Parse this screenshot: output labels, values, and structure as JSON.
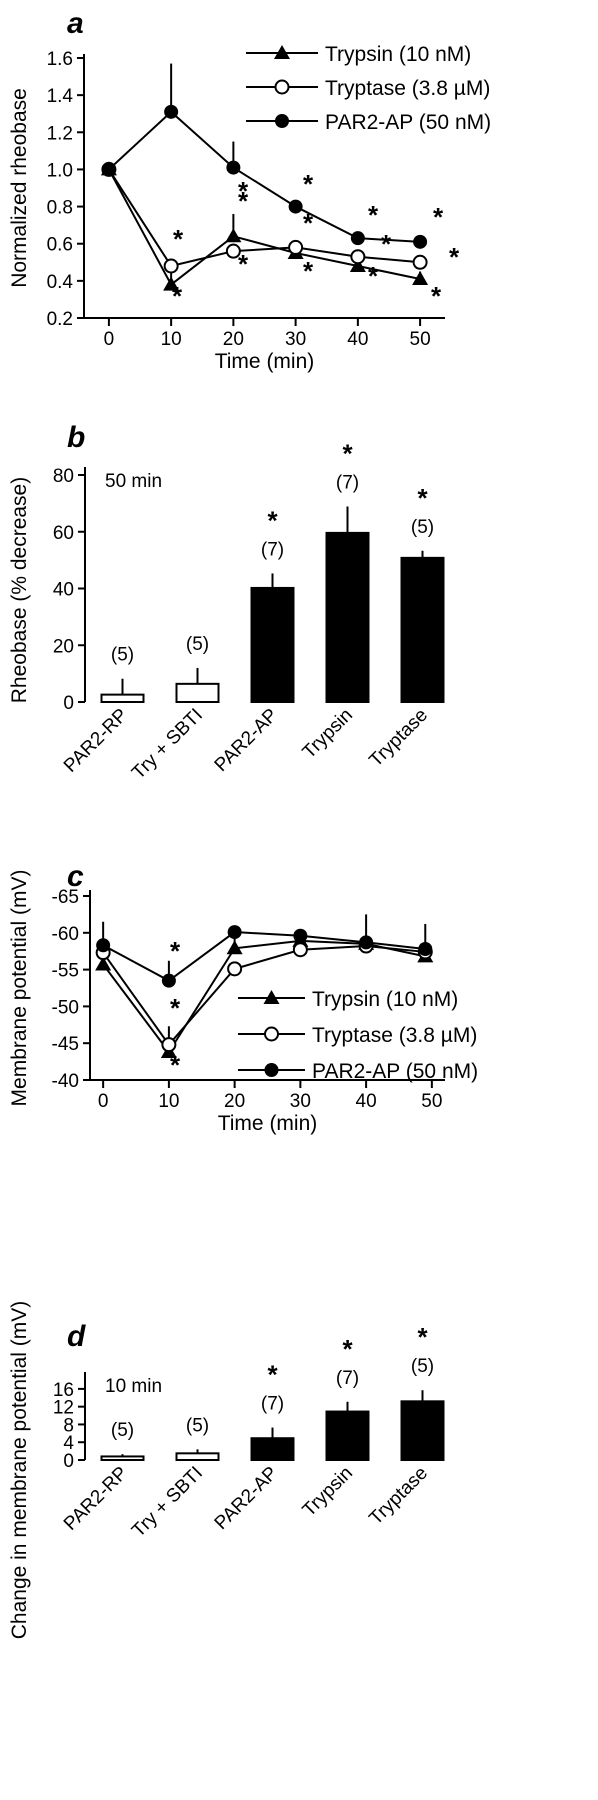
{
  "chart_data": [
    {
      "panel": "a",
      "type": "line",
      "xlabel": "Time (min)",
      "ylabel": "Normalized rheobase",
      "x": [
        0,
        10,
        20,
        30,
        40,
        50
      ],
      "xticks": [
        "0",
        "10",
        "20",
        "30",
        "40",
        "50"
      ],
      "yticks": [
        "0.2",
        "0.4",
        "0.6",
        "0.8",
        "1.0",
        "1.2",
        "1.4",
        "1.6"
      ],
      "ylim": [
        0.2,
        1.6
      ],
      "xlim": [
        -4,
        54
      ],
      "legend_position": "top-right",
      "series": [
        {
          "name": "Trypsin (10 nM)",
          "marker": "triangle",
          "values": [
            1.0,
            0.38,
            0.64,
            0.55,
            0.48,
            0.41
          ],
          "err_up": [
            0,
            0.12,
            0.12,
            0.05,
            0.04,
            0.04
          ]
        },
        {
          "name": "Tryptase (3.8 µM)",
          "marker": "open-circle",
          "values": [
            1.0,
            0.48,
            0.56,
            0.58,
            0.53,
            0.5
          ],
          "err_up": [
            0,
            0.04,
            0.04,
            0.04,
            0.03,
            0.03
          ]
        },
        {
          "name": "PAR2-AP (50 nM)",
          "marker": "filled-circle",
          "values": [
            1.0,
            1.31,
            1.01,
            0.8,
            0.63,
            0.61
          ],
          "err_up": [
            0,
            0.26,
            0.14,
            0.02,
            0.02,
            0.02
          ]
        }
      ],
      "significance": [
        "*",
        "*",
        "*",
        "*",
        "*",
        "*",
        "*",
        "*",
        "*",
        "*",
        "*",
        "*",
        "*",
        "*"
      ]
    },
    {
      "panel": "b",
      "type": "bar",
      "note": "50 min",
      "xlabel": "",
      "ylabel": "Rheobase (% decrease)",
      "categories": [
        "PAR2-RP",
        "Try + SBTI",
        "PAR2-AP",
        "Trypsin",
        "Tryptase"
      ],
      "values": [
        2.6,
        6.4,
        40.2,
        59.6,
        50.8
      ],
      "err_up": [
        5.6,
        5.6,
        5.1,
        9.3,
        2.5
      ],
      "n_labels": [
        "(5)",
        "(5)",
        "(7)",
        "(7)",
        "(5)"
      ],
      "significant": [
        false,
        false,
        true,
        true,
        true
      ],
      "bar_fill": [
        "open",
        "open",
        "filled",
        "filled",
        "filled"
      ],
      "yticks": [
        "0",
        "20",
        "40",
        "60",
        "80"
      ],
      "ylim": [
        0,
        80
      ]
    },
    {
      "panel": "c",
      "type": "line",
      "xlabel": "Time (min)",
      "ylabel": "Membrane potential (mV)",
      "x": [
        0,
        10,
        20,
        30,
        40,
        50
      ],
      "xticks": [
        "0",
        "10",
        "20",
        "30",
        "40",
        "50"
      ],
      "yticks": [
        "-65",
        "-60",
        "-55",
        "-50",
        "-45",
        "-40"
      ],
      "ylim": [
        -65,
        -40
      ],
      "xlim": [
        -2,
        52
      ],
      "y_inverted": true,
      "legend_position": "lower-right",
      "series": [
        {
          "name": "Trypsin (10 nM)",
          "marker": "triangle",
          "x": [
            0,
            10,
            20,
            30,
            40,
            49
          ],
          "values": [
            -55.7,
            -43.8,
            -57.9,
            -58.9,
            -58.5,
            -56.8
          ],
          "err_up": [
            0,
            3.5,
            2.6,
            0,
            0,
            0
          ]
        },
        {
          "name": "Tryptase (3.8 µM)",
          "marker": "open-circle",
          "x": [
            0,
            10,
            20,
            30,
            40,
            49
          ],
          "values": [
            -57.3,
            -44.8,
            -55.1,
            -57.7,
            -58.2,
            -57.4
          ],
          "err_up": [
            0,
            0,
            0,
            0,
            0,
            0
          ]
        },
        {
          "name": "PAR2-AP (50 nM)",
          "marker": "filled-circle",
          "x": [
            0,
            10,
            20,
            30,
            40,
            49
          ],
          "values": [
            -58.3,
            -53.5,
            -60.1,
            -59.6,
            -58.7,
            -57.8
          ],
          "err_up": [
            3.2,
            2.7,
            0.8,
            0.8,
            3.8,
            3.4
          ]
        }
      ],
      "significance": [
        "*",
        "*",
        "*"
      ]
    },
    {
      "panel": "d",
      "type": "bar",
      "note": "10 min",
      "xlabel": "",
      "ylabel": "Change in membrane potential (mV)",
      "categories": [
        "PAR2-RP",
        "Try + SBTI",
        "PAR2-AP",
        "Trypsin",
        "Tryptase"
      ],
      "values": [
        0.8,
        1.5,
        4.9,
        10.9,
        13.2
      ],
      "err_up": [
        0.5,
        0.9,
        2.4,
        2.2,
        2.5
      ],
      "n_labels": [
        "(5)",
        "(5)",
        "(7)",
        "(7)",
        "(5)"
      ],
      "significant": [
        false,
        false,
        true,
        true,
        true
      ],
      "bar_fill": [
        "open",
        "open",
        "filled",
        "filled",
        "filled"
      ],
      "yticks": [
        "0",
        "4",
        "8",
        "12",
        "16"
      ],
      "ylim": [
        0,
        18
      ]
    }
  ],
  "panels": {
    "a": "a",
    "b": "b",
    "c": "c",
    "d": "d"
  }
}
